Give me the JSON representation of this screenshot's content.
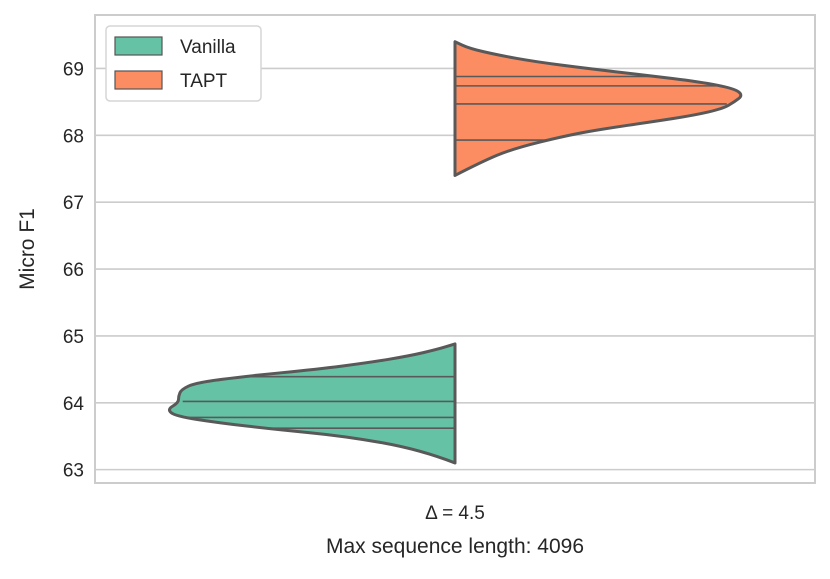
{
  "chart_data": {
    "type": "violin",
    "split": true,
    "title": "",
    "xlabel": "Max sequence length: 4096",
    "ylabel": "Micro F1",
    "categories": [
      "Δ = 4.5"
    ],
    "ylim": [
      62.8,
      69.8
    ],
    "yticks": [
      63,
      64,
      65,
      66,
      67,
      68,
      69
    ],
    "grid": true,
    "legend": {
      "placement": "top-left"
    },
    "series": [
      {
        "name": "Vanilla",
        "side": "left",
        "color": "#66c2a5",
        "range": [
          63.1,
          64.9
        ],
        "quartile_lines": [
          63.62,
          63.78,
          64.02,
          64.39
        ],
        "density": [
          [
            63.1,
            0.0
          ],
          [
            63.3,
            0.12
          ],
          [
            63.5,
            0.38
          ],
          [
            63.6,
            0.62
          ],
          [
            63.7,
            0.82
          ],
          [
            63.8,
            0.97
          ],
          [
            63.9,
            1.0
          ],
          [
            64.0,
            0.96
          ],
          [
            64.1,
            0.96
          ],
          [
            64.2,
            0.95
          ],
          [
            64.3,
            0.9
          ],
          [
            64.4,
            0.72
          ],
          [
            64.5,
            0.48
          ],
          [
            64.6,
            0.3
          ],
          [
            64.7,
            0.16
          ],
          [
            64.8,
            0.06
          ],
          [
            64.88,
            0.0
          ]
        ]
      },
      {
        "name": "TAPT",
        "side": "right",
        "color": "#fc8d62",
        "range": [
          67.4,
          69.4
        ],
        "quartile_lines": [
          67.93,
          68.47,
          68.74,
          68.88
        ],
        "density": [
          [
            67.4,
            0.0
          ],
          [
            67.6,
            0.09
          ],
          [
            67.8,
            0.2
          ],
          [
            68.0,
            0.39
          ],
          [
            68.1,
            0.52
          ],
          [
            68.2,
            0.68
          ],
          [
            68.3,
            0.83
          ],
          [
            68.4,
            0.93
          ],
          [
            68.5,
            0.97
          ],
          [
            68.6,
            1.0
          ],
          [
            68.7,
            0.97
          ],
          [
            68.8,
            0.85
          ],
          [
            68.9,
            0.66
          ],
          [
            69.0,
            0.46
          ],
          [
            69.1,
            0.28
          ],
          [
            69.2,
            0.15
          ],
          [
            69.3,
            0.05
          ],
          [
            69.4,
            0.0
          ]
        ]
      }
    ]
  }
}
